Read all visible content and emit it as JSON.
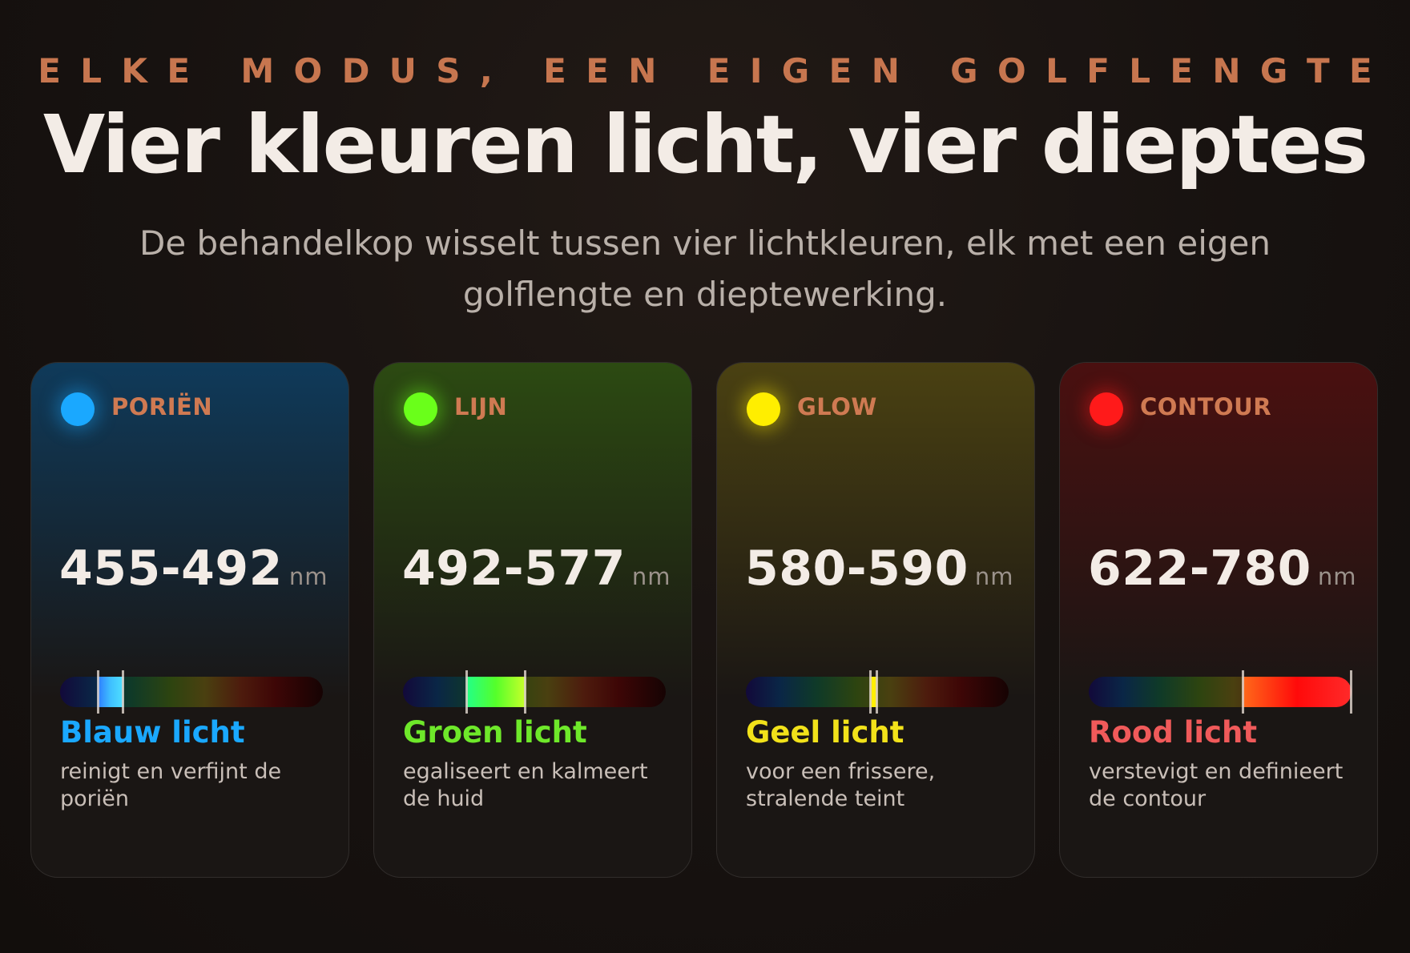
{
  "header": {
    "eyebrow": "ELKE MODUS, EEN EIGEN GOLFLENGTE",
    "title": "Vier kleuren licht, vier dieptes",
    "subtitle": "De behandelkop wisselt tussen vier lichtkleuren, elk met een eigen golflengte en dieptewerking."
  },
  "cards": [
    {
      "mode": "PORIËN",
      "range": "455-492",
      "unit": "nm",
      "label": "Blauw licht",
      "description": "reinigt en verfijnt de poriën",
      "accent_color": "#1aa8ff",
      "label_color": "#1aa8ff",
      "glow_color": "#0f3a5a",
      "band_gradient": [
        "#2e7cff",
        "#3fc0ff",
        "#4fe0ff"
      ],
      "band_nm": [
        455,
        492
      ]
    },
    {
      "mode": "LIJN",
      "range": "492-577",
      "unit": "nm",
      "label": "Groen licht",
      "description": "egaliseert en kalmeert de huid",
      "accent_color": "#6aff1a",
      "label_color": "#6ee82a",
      "glow_color": "#2c4a12",
      "band_gradient": [
        "#22ff88",
        "#55ff2a",
        "#c8ff2a"
      ],
      "band_nm": [
        492,
        577
      ]
    },
    {
      "mode": "GLOW",
      "range": "580-590",
      "unit": "nm",
      "label": "Geel licht",
      "description": "voor een frissere, stralende teint",
      "accent_color": "#ffee00",
      "label_color": "#f2e21a",
      "glow_color": "#4a4112",
      "band_gradient": [
        "#ffe400",
        "#fff200",
        "#ffe400"
      ],
      "band_nm": [
        580,
        590
      ]
    },
    {
      "mode": "CONTOUR",
      "range": "622-780",
      "unit": "nm",
      "label": "Rood licht",
      "description": "verstevigt en definieert de contour",
      "accent_color": "#ff1a1a",
      "label_color": "#f05a5a",
      "glow_color": "#4a1010",
      "band_gradient": [
        "#ff6a1a",
        "#ff0a0a",
        "#ff2a2a"
      ],
      "band_nm": [
        622,
        780
      ]
    }
  ],
  "spectrum_scale_nm": [
    400,
    780
  ]
}
